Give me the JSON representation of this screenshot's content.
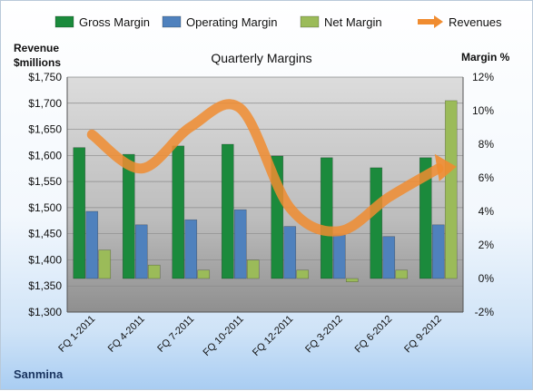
{
  "chart_data": {
    "type": "bar",
    "title": "Quarterly Margins",
    "company": "Sanmina",
    "ylabel_left": [
      "Revenue",
      "$millions"
    ],
    "ylabel_right": "Margin %",
    "categories": [
      "FQ 1-2011",
      "FQ 4-2011",
      "FQ 7-2011",
      "FQ 10-2011",
      "FQ 12-2011",
      "FQ 3-2012",
      "FQ 6-2012",
      "FQ 9-2012"
    ],
    "left_axis": {
      "min": 1300,
      "max": 1750,
      "step": 50,
      "ticks": [
        "$1,300",
        "$1,350",
        "$1,400",
        "$1,450",
        "$1,500",
        "$1,550",
        "$1,600",
        "$1,650",
        "$1,700",
        "$1,750"
      ]
    },
    "right_axis": {
      "min": -2,
      "max": 12,
      "step": 2,
      "ticks": [
        "-2%",
        "0%",
        "2%",
        "4%",
        "6%",
        "8%",
        "10%",
        "12%"
      ]
    },
    "series": [
      {
        "name": "Gross Margin",
        "kind": "bar",
        "axis": "right",
        "color": "#1b8a3c",
        "values": [
          7.8,
          7.4,
          7.9,
          8.0,
          7.3,
          7.2,
          6.6,
          7.2
        ]
      },
      {
        "name": "Operating Margin",
        "kind": "bar",
        "axis": "right",
        "color": "#4f81bd",
        "values": [
          4.0,
          3.2,
          3.5,
          4.1,
          3.1,
          2.6,
          2.5,
          3.2
        ]
      },
      {
        "name": "Net Margin",
        "kind": "bar",
        "axis": "right",
        "color": "#9bbb59",
        "values": [
          1.7,
          0.8,
          0.5,
          1.1,
          0.5,
          -0.2,
          0.5,
          10.6
        ]
      },
      {
        "name": "Revenues",
        "kind": "line",
        "axis": "left",
        "color": "#f08c30",
        "values": [
          1640,
          1575,
          1655,
          1690,
          1500,
          1455,
          1520,
          1575
        ]
      }
    ],
    "grid": true,
    "legend": "top"
  }
}
